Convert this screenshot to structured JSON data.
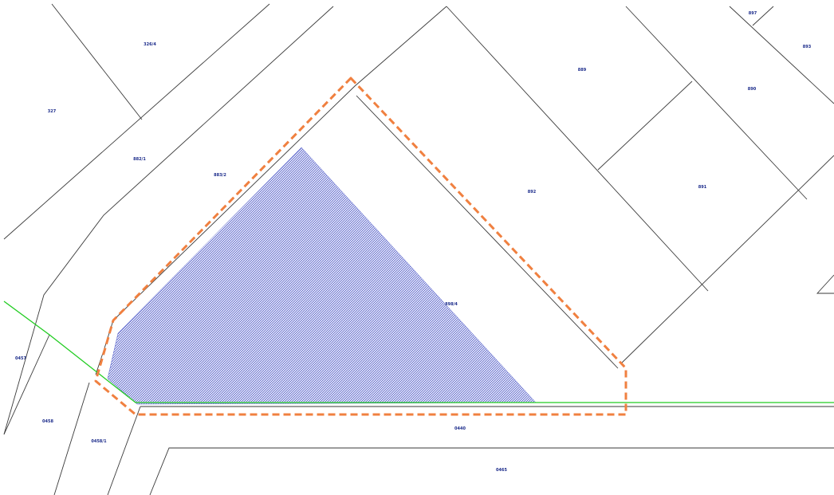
{
  "map": {
    "colors": {
      "background": "#ffffff",
      "parcel_lines": "#3a3a3a",
      "parcel_labels": "#1a2a8a",
      "hatch_area": "#4a56c8",
      "boundary_line": "#22cc22",
      "highlight_outline": "#f08040"
    },
    "highlight_style": "dashed outline",
    "hatch_style": "dense blue hatch",
    "parcel_labels": [
      "326/4",
      "327",
      "882/1",
      "883/2",
      "889",
      "890",
      "891",
      "892",
      "893",
      "897",
      "898/4",
      "0457",
      "0458",
      "0458/1",
      "0440",
      "0465"
    ]
  }
}
